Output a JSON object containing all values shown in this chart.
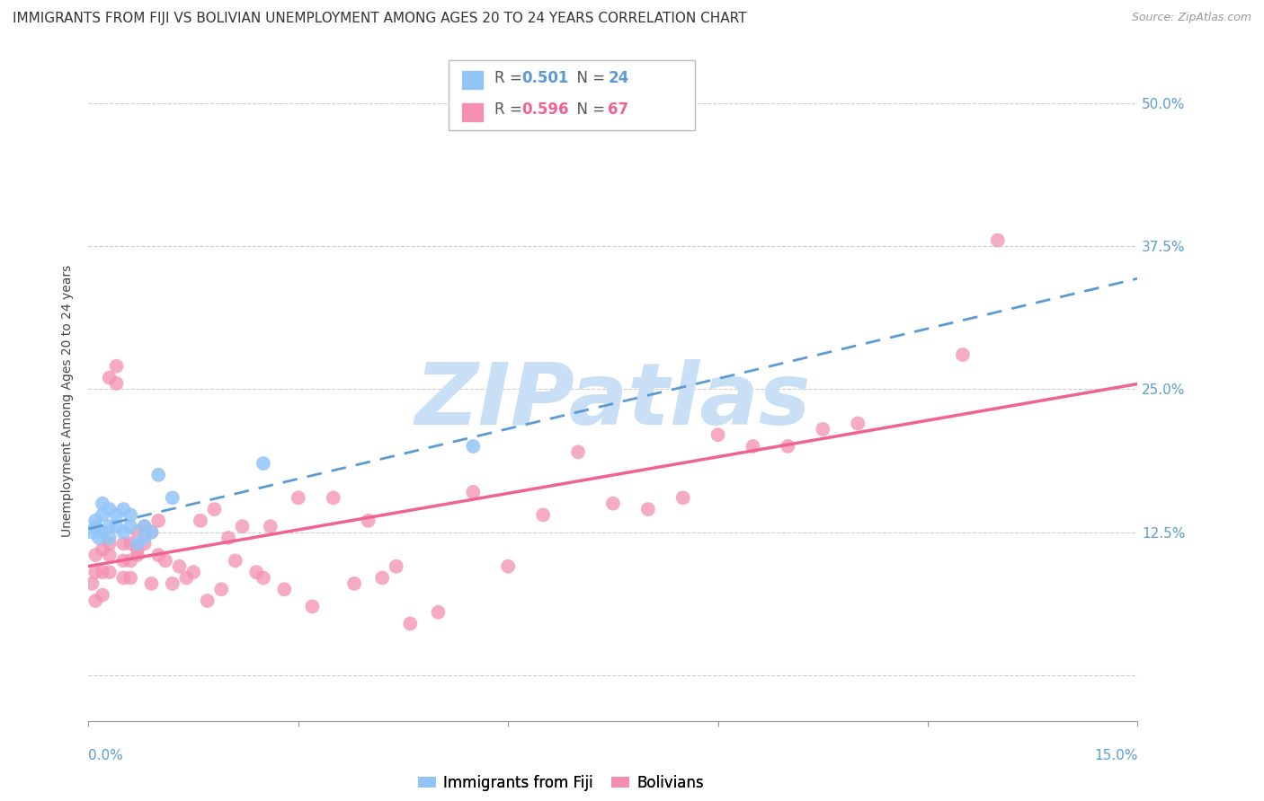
{
  "title": "IMMIGRANTS FROM FIJI VS BOLIVIAN UNEMPLOYMENT AMONG AGES 20 TO 24 YEARS CORRELATION CHART",
  "source": "Source: ZipAtlas.com",
  "ylabel": "Unemployment Among Ages 20 to 24 years",
  "xmin": 0.0,
  "xmax": 0.15,
  "ymin": -0.04,
  "ymax": 0.52,
  "fiji_R": 0.501,
  "fiji_N": 24,
  "bolivian_R": 0.596,
  "bolivian_N": 67,
  "fiji_color": "#92C5F7",
  "bolivian_color": "#F48FB1",
  "fiji_line_color": "#5b9bd5",
  "bolivian_line_color": "#F06292",
  "watermark": "ZIPatlas",
  "watermark_color": "#c8dff5",
  "fiji_x": [
    0.0005,
    0.001,
    0.001,
    0.0015,
    0.002,
    0.002,
    0.002,
    0.003,
    0.003,
    0.003,
    0.004,
    0.004,
    0.005,
    0.005,
    0.006,
    0.006,
    0.007,
    0.008,
    0.008,
    0.009,
    0.01,
    0.012,
    0.025,
    0.055
  ],
  "fiji_y": [
    0.125,
    0.13,
    0.135,
    0.12,
    0.125,
    0.14,
    0.15,
    0.12,
    0.13,
    0.145,
    0.13,
    0.14,
    0.125,
    0.145,
    0.13,
    0.14,
    0.115,
    0.12,
    0.13,
    0.125,
    0.175,
    0.155,
    0.185,
    0.2
  ],
  "bolivian_x": [
    0.0005,
    0.001,
    0.001,
    0.001,
    0.002,
    0.002,
    0.002,
    0.003,
    0.003,
    0.003,
    0.003,
    0.004,
    0.004,
    0.005,
    0.005,
    0.005,
    0.006,
    0.006,
    0.006,
    0.007,
    0.007,
    0.007,
    0.008,
    0.008,
    0.009,
    0.009,
    0.01,
    0.01,
    0.011,
    0.012,
    0.013,
    0.014,
    0.015,
    0.016,
    0.017,
    0.018,
    0.019,
    0.02,
    0.021,
    0.022,
    0.024,
    0.025,
    0.026,
    0.028,
    0.03,
    0.032,
    0.035,
    0.038,
    0.04,
    0.042,
    0.044,
    0.046,
    0.05,
    0.055,
    0.06,
    0.065,
    0.07,
    0.075,
    0.08,
    0.085,
    0.09,
    0.095,
    0.1,
    0.105,
    0.11,
    0.125,
    0.13
  ],
  "bolivian_y": [
    0.08,
    0.065,
    0.09,
    0.105,
    0.07,
    0.09,
    0.11,
    0.09,
    0.105,
    0.115,
    0.26,
    0.255,
    0.27,
    0.1,
    0.085,
    0.115,
    0.1,
    0.085,
    0.115,
    0.105,
    0.125,
    0.11,
    0.115,
    0.13,
    0.08,
    0.125,
    0.105,
    0.135,
    0.1,
    0.08,
    0.095,
    0.085,
    0.09,
    0.135,
    0.065,
    0.145,
    0.075,
    0.12,
    0.1,
    0.13,
    0.09,
    0.085,
    0.13,
    0.075,
    0.155,
    0.06,
    0.155,
    0.08,
    0.135,
    0.085,
    0.095,
    0.045,
    0.055,
    0.16,
    0.095,
    0.14,
    0.195,
    0.15,
    0.145,
    0.155,
    0.21,
    0.2,
    0.2,
    0.215,
    0.22,
    0.28,
    0.38
  ],
  "grid_color": "#cccccc",
  "background_color": "#ffffff",
  "title_fontsize": 11,
  "axis_label_fontsize": 10,
  "tick_fontsize": 11,
  "legend_fontsize": 12
}
